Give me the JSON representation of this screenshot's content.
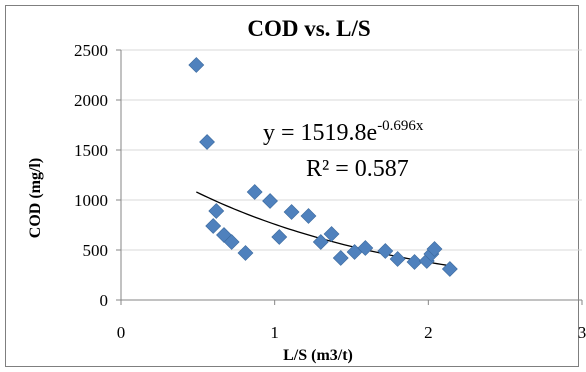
{
  "chart_data": {
    "type": "scatter",
    "title": "COD vs. L/S",
    "xlabel": "L/S (m3/t)",
    "ylabel": "COD (mg/l)",
    "xlim": [
      0,
      3
    ],
    "ylim": [
      0,
      2500
    ],
    "x_ticks": [
      "0",
      "1",
      "2",
      "3"
    ],
    "y_ticks": [
      "0",
      "500",
      "1000",
      "1500",
      "2000",
      "2500"
    ],
    "marker": "diamond",
    "marker_color": "#4f81bd",
    "trendline_color": "#000000",
    "grid": true,
    "legend": "none",
    "points": [
      {
        "x": 0.49,
        "y": 2350
      },
      {
        "x": 0.56,
        "y": 1580
      },
      {
        "x": 0.6,
        "y": 740
      },
      {
        "x": 0.62,
        "y": 890
      },
      {
        "x": 0.67,
        "y": 650
      },
      {
        "x": 0.72,
        "y": 580
      },
      {
        "x": 0.81,
        "y": 470
      },
      {
        "x": 0.87,
        "y": 1080
      },
      {
        "x": 0.97,
        "y": 990
      },
      {
        "x": 1.03,
        "y": 630
      },
      {
        "x": 1.11,
        "y": 880
      },
      {
        "x": 1.22,
        "y": 840
      },
      {
        "x": 1.3,
        "y": 580
      },
      {
        "x": 1.37,
        "y": 660
      },
      {
        "x": 1.43,
        "y": 420
      },
      {
        "x": 1.52,
        "y": 480
      },
      {
        "x": 1.59,
        "y": 520
      },
      {
        "x": 1.72,
        "y": 490
      },
      {
        "x": 1.8,
        "y": 410
      },
      {
        "x": 1.91,
        "y": 380
      },
      {
        "x": 1.99,
        "y": 390
      },
      {
        "x": 2.02,
        "y": 460
      },
      {
        "x": 2.04,
        "y": 510
      },
      {
        "x": 2.14,
        "y": 310
      }
    ],
    "trendline": {
      "type": "exponential",
      "a": 1519.8,
      "b": -0.696,
      "x_range": [
        0.49,
        2.14
      ],
      "equation_base": "y = 1519.8e",
      "equation_exp": "-0.696x",
      "r2_text": "R² = 0.587"
    }
  }
}
